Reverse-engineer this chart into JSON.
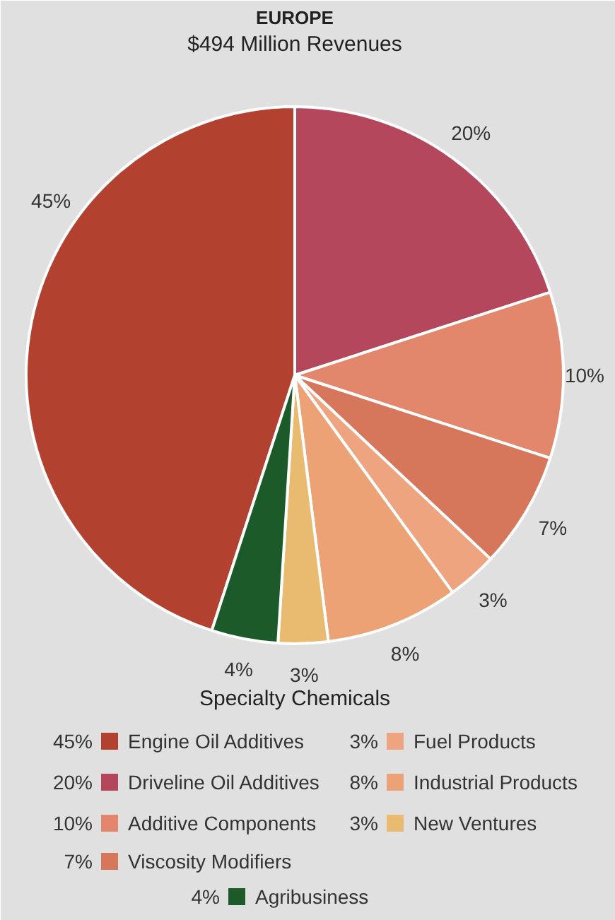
{
  "chart_data": {
    "type": "pie",
    "title": "EUROPE",
    "subtitle": "$494 Million Revenues",
    "legend_title": "Specialty Chemicals",
    "legend": "bottom",
    "categories": [
      "Engine Oil Additives",
      "Driveline Oil Additives",
      "Additive Components",
      "Viscosity Modifiers",
      "Fuel Products",
      "Industrial Products",
      "New Ventures",
      "Agribusiness"
    ],
    "values": [
      45,
      20,
      10,
      7,
      3,
      8,
      3,
      4
    ],
    "value_labels": [
      "45%",
      "20%",
      "10%",
      "7%",
      "3%",
      "8%",
      "3%",
      "4%"
    ],
    "colors": [
      "#b3412f",
      "#b5475d",
      "#e3876c",
      "#d6765a",
      "#eea47e",
      "#eca274",
      "#e9bb70",
      "#1d5a2a"
    ]
  }
}
